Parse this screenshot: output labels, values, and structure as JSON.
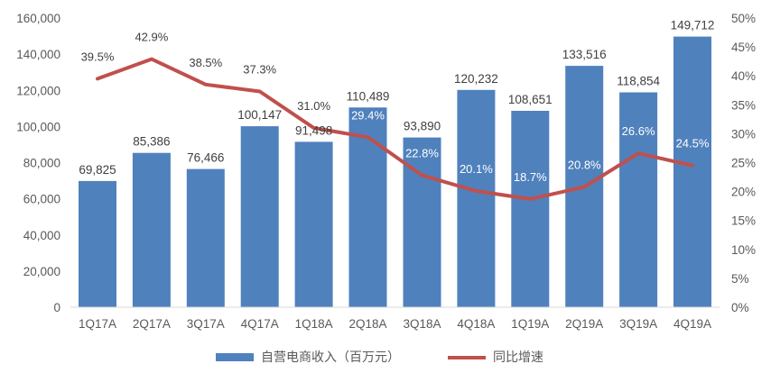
{
  "chart_data": {
    "type": "bar",
    "categories": [
      "1Q17A",
      "2Q17A",
      "3Q17A",
      "4Q17A",
      "1Q18A",
      "2Q18A",
      "3Q18A",
      "4Q18A",
      "1Q19A",
      "2Q19A",
      "3Q19A",
      "4Q19A"
    ],
    "series": [
      {
        "name": "自营电商收入（百万元）",
        "type": "bar",
        "axis": "left",
        "color": "#4F81BD",
        "values": [
          69825,
          85386,
          76466,
          100147,
          91498,
          110489,
          93890,
          120232,
          108651,
          133516,
          118854,
          149712
        ],
        "labels": [
          "69,825",
          "85,386",
          "76,466",
          "100,147",
          "91,498",
          "110,489",
          "93,890",
          "120,232",
          "108,651",
          "133,516",
          "118,854",
          "149,712"
        ]
      },
      {
        "name": "同比增速",
        "type": "line",
        "axis": "right",
        "color": "#C0504D",
        "values": [
          39.5,
          42.9,
          38.5,
          37.3,
          31.0,
          29.4,
          22.8,
          20.1,
          18.7,
          20.8,
          26.6,
          24.5
        ],
        "labels": [
          "39.5%",
          "42.9%",
          "38.5%",
          "37.3%",
          "31.0%",
          "29.4%",
          "22.8%",
          "20.1%",
          "18.7%",
          "20.8%",
          "26.6%",
          "24.5%"
        ]
      }
    ],
    "y_left": {
      "lim": [
        0,
        160000
      ],
      "ticks": [
        "0",
        "20,000",
        "40,000",
        "60,000",
        "80,000",
        "100,000",
        "120,000",
        "140,000",
        "160,000"
      ]
    },
    "y_right": {
      "lim": [
        0,
        50
      ],
      "ticks": [
        "0%",
        "5%",
        "10%",
        "15%",
        "20%",
        "25%",
        "30%",
        "35%",
        "40%",
        "45%",
        "50%"
      ]
    },
    "title": "",
    "xlabel": "",
    "grid": false,
    "legend_position": "bottom"
  }
}
